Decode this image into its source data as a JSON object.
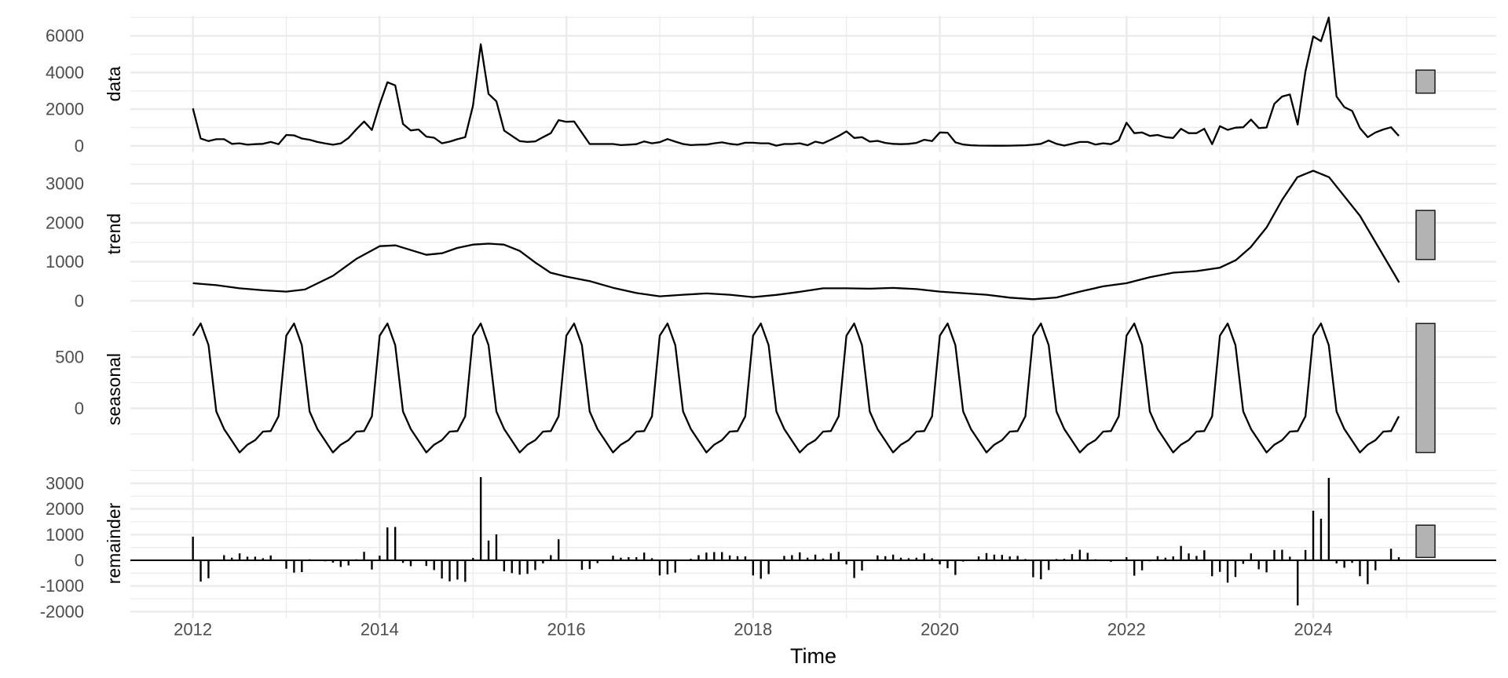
{
  "chart_data": {
    "type": "line",
    "title": "",
    "xlabel": "Time",
    "xlim": [
      2011.33,
      2025.96
    ],
    "xticks": [
      2012,
      2014,
      2016,
      2018,
      2020,
      2022,
      2024
    ],
    "xticklabels": [
      "2012",
      "2014",
      "2016",
      "2018",
      "2020",
      "2022",
      "2024"
    ],
    "start": 2012,
    "frequency": 12,
    "grid": true,
    "scale_bar_range": 1258,
    "panels": [
      {
        "label": "data",
        "type": "line",
        "ylim": [
          -350,
          7100
        ],
        "yticks": [
          0,
          2000,
          4000,
          6000
        ],
        "yticklabels": [
          "0",
          "2000",
          "4000",
          "6000"
        ],
        "values": [
          2040,
          400,
          260,
          360,
          360,
          110,
          140,
          60,
          90,
          110,
          210,
          90,
          590,
          570,
          400,
          330,
          210,
          130,
          60,
          130,
          430,
          900,
          1330,
          860,
          2260,
          3470,
          3300,
          1190,
          840,
          890,
          500,
          440,
          140,
          230,
          360,
          470,
          2190,
          5540,
          2830,
          2430,
          830,
          540,
          260,
          210,
          240,
          470,
          690,
          1400,
          1310,
          1330,
          710,
          100,
          100,
          100,
          100,
          40,
          60,
          90,
          240,
          140,
          200,
          370,
          230,
          100,
          40,
          60,
          70,
          140,
          190,
          110,
          60,
          170,
          170,
          140,
          140,
          10,
          100,
          100,
          140,
          30,
          230,
          140,
          330,
          540,
          790,
          430,
          470,
          230,
          270,
          160,
          110,
          90,
          110,
          160,
          330,
          260,
          730,
          710,
          190,
          70,
          30,
          15,
          10,
          5,
          5,
          10,
          20,
          30,
          60,
          110,
          290,
          110,
          15,
          110,
          210,
          210,
          70,
          140,
          90,
          300,
          1260,
          690,
          730,
          540,
          590,
          470,
          430,
          930,
          690,
          690,
          930,
          90,
          1070,
          870,
          990,
          1010,
          1430,
          970,
          1000,
          2290,
          2690,
          2800,
          1160,
          4060,
          5970,
          5710,
          7000,
          2690,
          2110,
          1900,
          970,
          470,
          730,
          890,
          1010,
          540
        ]
      },
      {
        "label": "trend",
        "type": "line",
        "ylim": [
          -175,
          3608
        ],
        "yticks": [
          0,
          1000,
          2000,
          3000
        ],
        "yticklabels": [
          "0",
          "1000",
          "2000",
          "3000"
        ],
        "points": [
          [
            2012.0,
            450
          ],
          [
            2012.25,
            400
          ],
          [
            2012.5,
            320
          ],
          [
            2012.75,
            270
          ],
          [
            2013.0,
            235
          ],
          [
            2013.2,
            290
          ],
          [
            2013.5,
            640
          ],
          [
            2013.75,
            1075
          ],
          [
            2014.0,
            1400
          ],
          [
            2014.17,
            1420
          ],
          [
            2014.5,
            1180
          ],
          [
            2014.67,
            1220
          ],
          [
            2014.83,
            1355
          ],
          [
            2015.0,
            1440
          ],
          [
            2015.17,
            1465
          ],
          [
            2015.33,
            1440
          ],
          [
            2015.5,
            1280
          ],
          [
            2015.67,
            975
          ],
          [
            2015.83,
            720
          ],
          [
            2016.0,
            620
          ],
          [
            2016.25,
            505
          ],
          [
            2016.5,
            335
          ],
          [
            2016.75,
            200
          ],
          [
            2017.0,
            115
          ],
          [
            2017.25,
            155
          ],
          [
            2017.5,
            190
          ],
          [
            2017.75,
            155
          ],
          [
            2018.0,
            95
          ],
          [
            2018.25,
            150
          ],
          [
            2018.5,
            230
          ],
          [
            2018.75,
            320
          ],
          [
            2019.0,
            320
          ],
          [
            2019.25,
            310
          ],
          [
            2019.5,
            330
          ],
          [
            2019.75,
            300
          ],
          [
            2020.0,
            235
          ],
          [
            2020.25,
            195
          ],
          [
            2020.5,
            155
          ],
          [
            2020.75,
            80
          ],
          [
            2021.0,
            40
          ],
          [
            2021.25,
            85
          ],
          [
            2021.5,
            235
          ],
          [
            2021.75,
            370
          ],
          [
            2022.0,
            450
          ],
          [
            2022.25,
            605
          ],
          [
            2022.5,
            720
          ],
          [
            2022.75,
            760
          ],
          [
            2023.0,
            850
          ],
          [
            2023.17,
            1040
          ],
          [
            2023.33,
            1375
          ],
          [
            2023.5,
            1880
          ],
          [
            2023.67,
            2600
          ],
          [
            2023.83,
            3170
          ],
          [
            2024.0,
            3335
          ],
          [
            2024.17,
            3170
          ],
          [
            2024.5,
            2180
          ],
          [
            2024.92,
            470
          ]
        ]
      },
      {
        "label": "seasonal",
        "type": "line",
        "ylim": [
          -518,
          890
        ],
        "yticks": [
          0,
          500
        ],
        "yticklabels": [
          "0",
          "500"
        ],
        "pattern": [
          709,
          827,
          615,
          -31,
          -202,
          -316,
          -431,
          -355,
          -311,
          -227,
          -222,
          -79
        ],
        "periods": 156
      },
      {
        "label": "remainder",
        "type": "bar",
        "ylim": [
          -2263,
          3578
        ],
        "yticks": [
          -2000,
          -1000,
          0,
          1000,
          2000,
          3000
        ],
        "yticklabels": [
          "-2000",
          "-1000",
          "0",
          "1000",
          "2000",
          "3000"
        ],
        "values": [
          920,
          -830,
          -700,
          0,
          200,
          100,
          270,
          140,
          140,
          80,
          190,
          -30,
          -330,
          -480,
          -460,
          40,
          0,
          -40,
          -90,
          -260,
          -200,
          40,
          330,
          -360,
          180,
          1280,
          1300,
          -100,
          -230,
          0,
          -220,
          -380,
          -710,
          -820,
          -750,
          -840,
          90,
          3240,
          770,
          1010,
          -430,
          -500,
          -560,
          -530,
          -380,
          -120,
          200,
          820,
          0,
          -30,
          -370,
          -340,
          -110,
          0,
          180,
          100,
          120,
          120,
          300,
          80,
          -590,
          -550,
          -480,
          0,
          60,
          200,
          300,
          320,
          320,
          190,
          160,
          150,
          -590,
          -720,
          -540,
          -30,
          170,
          200,
          310,
          100,
          220,
          70,
          270,
          330,
          -160,
          -690,
          -400,
          0,
          190,
          160,
          220,
          100,
          80,
          100,
          270,
          80,
          -160,
          -310,
          -570,
          -50,
          0,
          150,
          280,
          220,
          210,
          150,
          170,
          50,
          -660,
          -740,
          -380,
          50,
          60,
          240,
          410,
          290,
          40,
          0,
          -60,
          0,
          120,
          -600,
          -390,
          -40,
          160,
          100,
          150,
          560,
          270,
          170,
          390,
          -620,
          -450,
          -870,
          -650,
          -140,
          270,
          -350,
          -470,
          400,
          410,
          140,
          -1760,
          400,
          1930,
          1620,
          3210,
          -120,
          -290,
          -100,
          -620,
          -930,
          -390,
          0,
          450,
          120
        ]
      }
    ],
    "colors": {
      "line": "#000000",
      "grid": "#ebebeb",
      "scale_bar": "#b3b3b3",
      "tick_text": "#4d4d4d"
    }
  }
}
